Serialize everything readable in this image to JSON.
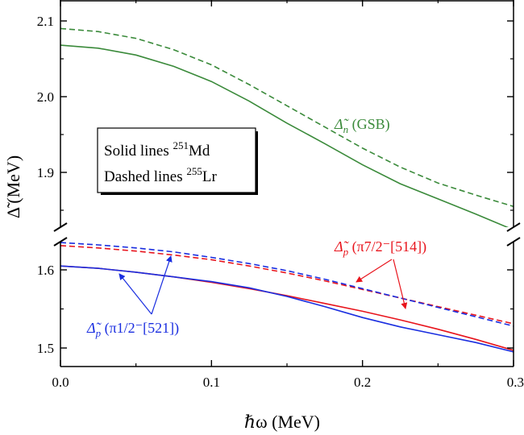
{
  "chart_data": {
    "type": "line",
    "xlabel": "ℏω (MeV)",
    "ylabel": "Δ̃ (MeV)",
    "xlim": [
      0.0,
      0.3
    ],
    "x_ticks": [
      "0.0",
      "0.1",
      "0.2",
      "0.3"
    ],
    "axis_break": true,
    "upper_ylim": [
      1.835,
      2.125
    ],
    "upper_y_ticks": [
      "2.1",
      "2.0",
      "1.9"
    ],
    "lower_ylim": [
      1.475,
      1.638
    ],
    "lower_y_ticks": [
      "1.6",
      "1.5"
    ],
    "legend": {
      "lines": [
        {
          "pre": "Solid lines ",
          "sup": "251",
          "post": "Md"
        },
        {
          "pre": "Dashed lines ",
          "sup": "255",
          "post": "Lr"
        }
      ]
    },
    "colors": {
      "neutron": "#3a8a3a",
      "proton_514": "#e8141c",
      "proton_521": "#1a2ee0"
    },
    "annotations": [
      {
        "id": "neutron",
        "symbol": "Δ̃",
        "sub": "n",
        "text": "(GSB)"
      },
      {
        "id": "proton_514",
        "symbol": "Δ̃",
        "sub": "p",
        "text": "(π7/2⁻[514])"
      },
      {
        "id": "proton_521",
        "symbol": "Δ̃",
        "sub": "p",
        "text": "(π1/2⁻[521])"
      }
    ],
    "series": [
      {
        "panel": "upper",
        "color_key": "neutron",
        "style": "solid",
        "x": [
          0.0,
          0.025,
          0.05,
          0.075,
          0.1,
          0.125,
          0.15,
          0.175,
          0.2,
          0.225,
          0.25,
          0.275,
          0.3
        ],
        "y": [
          2.068,
          2.064,
          2.055,
          2.04,
          2.02,
          1.994,
          1.965,
          1.938,
          1.91,
          1.885,
          1.865,
          1.845,
          1.824
        ]
      },
      {
        "panel": "upper",
        "color_key": "neutron",
        "style": "dashed",
        "x": [
          0.0,
          0.025,
          0.05,
          0.075,
          0.1,
          0.125,
          0.15,
          0.175,
          0.2,
          0.225,
          0.25,
          0.275,
          0.3
        ],
        "y": [
          2.09,
          2.086,
          2.077,
          2.062,
          2.042,
          2.016,
          1.988,
          1.96,
          1.932,
          1.907,
          1.886,
          1.87,
          1.855
        ]
      },
      {
        "panel": "lower",
        "color_key": "proton_514",
        "style": "solid",
        "x": [
          0.0,
          0.025,
          0.05,
          0.075,
          0.1,
          0.125,
          0.15,
          0.175,
          0.2,
          0.225,
          0.25,
          0.275,
          0.3
        ],
        "y": [
          1.605,
          1.602,
          1.597,
          1.591,
          1.584,
          1.576,
          1.567,
          1.557,
          1.547,
          1.536,
          1.524,
          1.511,
          1.497
        ]
      },
      {
        "panel": "lower",
        "color_key": "proton_521",
        "style": "solid",
        "x": [
          0.0,
          0.025,
          0.05,
          0.075,
          0.1,
          0.125,
          0.15,
          0.175,
          0.2,
          0.225,
          0.25,
          0.275,
          0.3
        ],
        "y": [
          1.605,
          1.602,
          1.597,
          1.591,
          1.585,
          1.577,
          1.566,
          1.553,
          1.539,
          1.527,
          1.517,
          1.507,
          1.495
        ]
      },
      {
        "panel": "lower",
        "color_key": "proton_514",
        "style": "dashed",
        "x": [
          0.0,
          0.025,
          0.05,
          0.075,
          0.1,
          0.125,
          0.15,
          0.175,
          0.2,
          0.225,
          0.25,
          0.275,
          0.3
        ],
        "y": [
          1.631,
          1.628,
          1.624,
          1.619,
          1.613,
          1.605,
          1.596,
          1.586,
          1.575,
          1.564,
          1.553,
          1.542,
          1.531
        ]
      },
      {
        "panel": "lower",
        "color_key": "proton_521",
        "style": "dashed",
        "x": [
          0.0,
          0.025,
          0.05,
          0.075,
          0.1,
          0.125,
          0.15,
          0.175,
          0.2,
          0.225,
          0.25,
          0.275,
          0.3
        ],
        "y": [
          1.635,
          1.632,
          1.628,
          1.623,
          1.616,
          1.608,
          1.599,
          1.588,
          1.576,
          1.564,
          1.552,
          1.54,
          1.528
        ]
      }
    ]
  }
}
